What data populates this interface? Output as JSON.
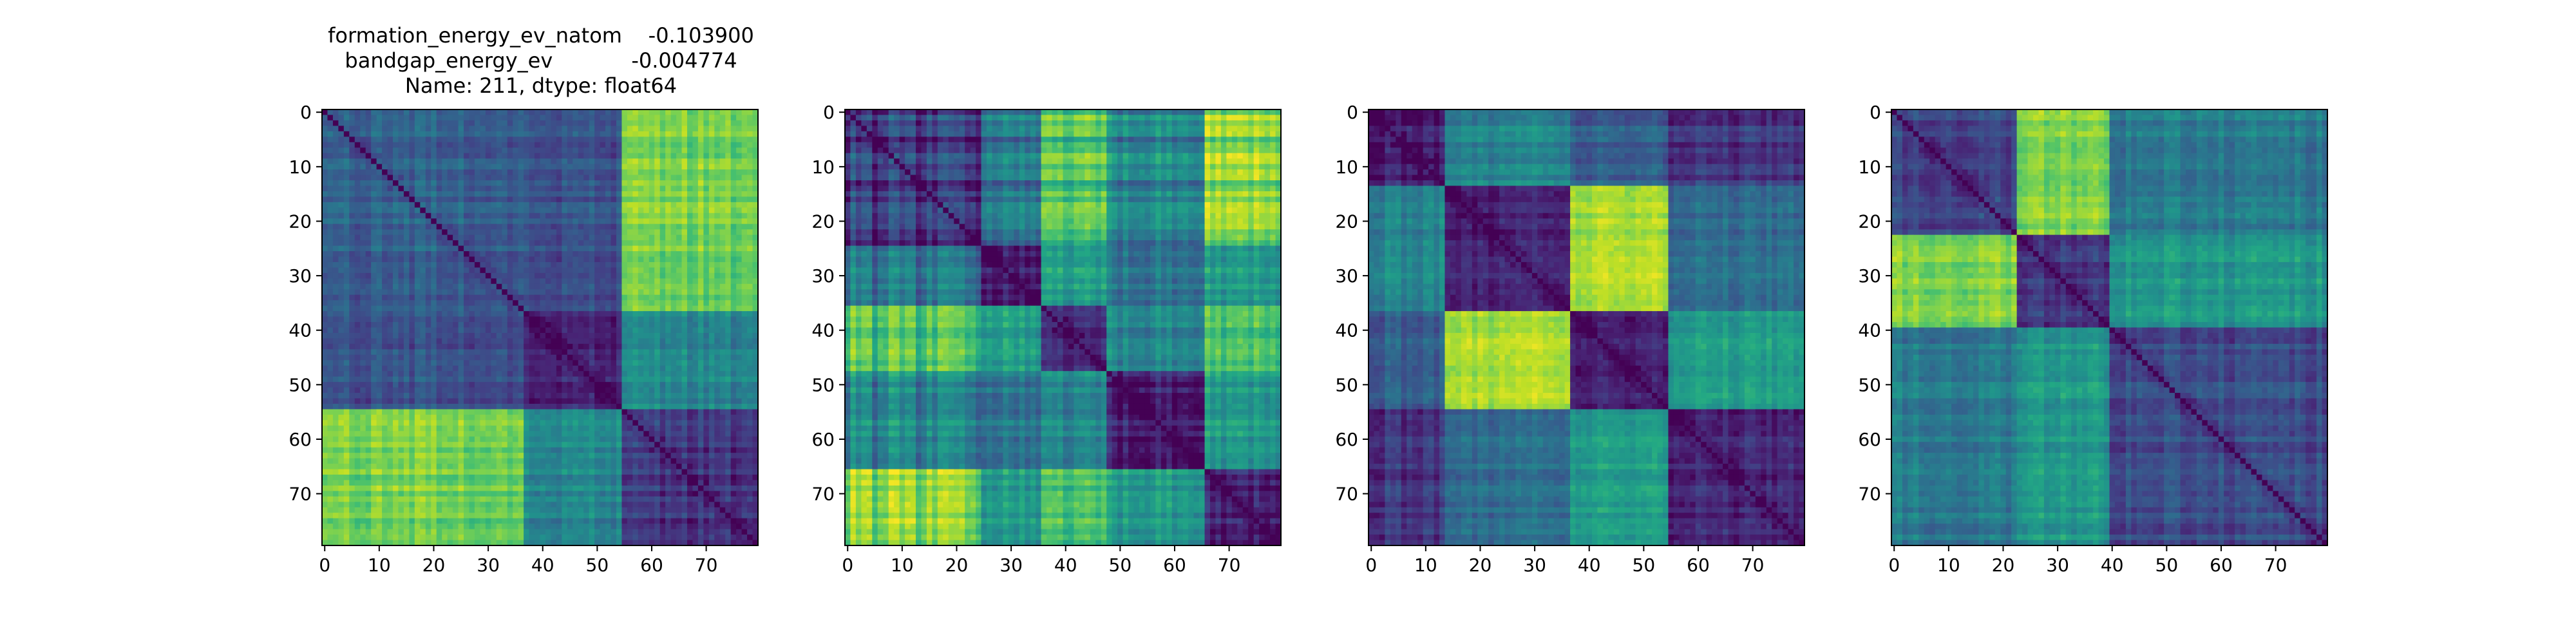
{
  "title_lines": [
    "formation_energy_ev_natom    -0.103900",
    "bandgap_energy_ev            -0.004774",
    "Name: 211, dtype: float64"
  ],
  "chart_data": [
    {
      "type": "heatmap",
      "panel": 1,
      "size": 80,
      "colormap": "viridis",
      "blocks": [
        0,
        37,
        55,
        80
      ],
      "block_levels": [
        [
          0.3,
          0.25,
          0.78
        ],
        [
          0.25,
          0.1,
          0.45
        ],
        [
          0.78,
          0.45,
          0.14
        ]
      ],
      "block_strength": [
        0.22,
        0.18,
        0.22
      ],
      "x_ticks": [
        0,
        10,
        20,
        30,
        40,
        50,
        60,
        70
      ],
      "y_ticks": [
        0,
        10,
        20,
        30,
        40,
        50,
        60,
        70
      ],
      "xlim": [
        0,
        79
      ],
      "ylim": [
        79,
        0
      ]
    },
    {
      "type": "heatmap",
      "panel": 2,
      "size": 80,
      "colormap": "viridis",
      "blocks": [
        0,
        25,
        36,
        48,
        66,
        80
      ],
      "block_levels": [
        [
          0.15,
          0.4,
          0.7,
          0.45,
          0.82
        ],
        [
          0.4,
          0.1,
          0.55,
          0.4,
          0.55
        ],
        [
          0.7,
          0.55,
          0.1,
          0.45,
          0.7
        ],
        [
          0.45,
          0.4,
          0.45,
          0.1,
          0.55
        ],
        [
          0.82,
          0.55,
          0.7,
          0.55,
          0.1
        ]
      ],
      "block_strength": [
        0.45,
        0.22,
        0.2,
        0.25,
        0.22
      ],
      "x_ticks": [
        0,
        10,
        20,
        30,
        40,
        50,
        60,
        70
      ],
      "y_ticks": [
        0,
        10,
        20,
        30,
        40,
        50,
        60,
        70
      ],
      "xlim": [
        0,
        79
      ],
      "ylim": [
        79,
        0
      ]
    },
    {
      "type": "heatmap",
      "panel": 3,
      "size": 80,
      "colormap": "viridis",
      "blocks": [
        0,
        14,
        37,
        55,
        80
      ],
      "block_levels": [
        [
          0.08,
          0.45,
          0.3,
          0.15
        ],
        [
          0.45,
          0.1,
          0.88,
          0.35
        ],
        [
          0.3,
          0.88,
          0.1,
          0.55
        ],
        [
          0.15,
          0.35,
          0.55,
          0.1
        ]
      ],
      "block_strength": [
        0.2,
        0.18,
        0.15,
        0.18
      ],
      "x_ticks": [
        0,
        10,
        20,
        30,
        40,
        50,
        60,
        70
      ],
      "y_ticks": [
        0,
        10,
        20,
        30,
        40,
        50,
        60,
        70
      ],
      "xlim": [
        0,
        79
      ],
      "ylim": [
        79,
        0
      ]
    },
    {
      "type": "heatmap",
      "panel": 4,
      "size": 80,
      "colormap": "viridis",
      "blocks": [
        0,
        23,
        40,
        80
      ],
      "block_levels": [
        [
          0.2,
          0.8,
          0.4
        ],
        [
          0.8,
          0.15,
          0.52
        ],
        [
          0.4,
          0.52,
          0.22
        ]
      ],
      "block_strength": [
        0.18,
        0.2,
        0.2
      ],
      "x_ticks": [
        0,
        10,
        20,
        30,
        40,
        50,
        60,
        70
      ],
      "y_ticks": [
        0,
        10,
        20,
        30,
        40,
        50,
        60,
        70
      ],
      "xlim": [
        0,
        79
      ],
      "ylim": [
        79,
        0
      ]
    }
  ]
}
